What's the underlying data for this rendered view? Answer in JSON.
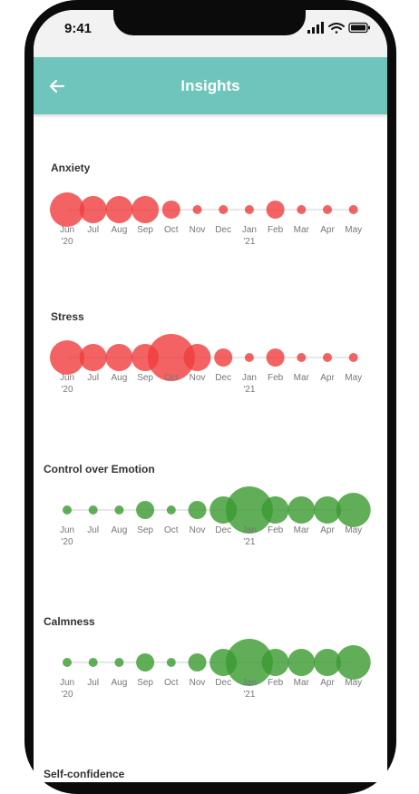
{
  "status_bar": {
    "time": "9:41"
  },
  "header": {
    "title": "Insights"
  },
  "months": [
    {
      "m": "Jun",
      "y": "'20"
    },
    {
      "m": "Jul",
      "y": ""
    },
    {
      "m": "Aug",
      "y": ""
    },
    {
      "m": "Sep",
      "y": ""
    },
    {
      "m": "Oct",
      "y": ""
    },
    {
      "m": "Nov",
      "y": ""
    },
    {
      "m": "Dec",
      "y": ""
    },
    {
      "m": "Jan",
      "y": "'21"
    },
    {
      "m": "Feb",
      "y": ""
    },
    {
      "m": "Mar",
      "y": ""
    },
    {
      "m": "Apr",
      "y": ""
    },
    {
      "m": "May",
      "y": ""
    }
  ],
  "sections": [
    {
      "title": "Anxiety",
      "color": "#f03c3c",
      "values": [
        9,
        7,
        7,
        7,
        4,
        2,
        2,
        2,
        4,
        2,
        2,
        2
      ]
    },
    {
      "title": "Stress",
      "color": "#f03c3c",
      "values": [
        9,
        7,
        7,
        7,
        11,
        7,
        4,
        2,
        4,
        2,
        2,
        2
      ]
    },
    {
      "title": "Control over Emotion",
      "color": "#3a9a30",
      "values": [
        2,
        2,
        2,
        4,
        2,
        4,
        7,
        11,
        7,
        7,
        7,
        9
      ]
    },
    {
      "title": "Calmness",
      "color": "#3a9a30",
      "values": [
        2,
        2,
        2,
        4,
        2,
        4,
        7,
        11,
        7,
        7,
        7,
        9
      ]
    },
    {
      "title": "Self-confidence",
      "color": "#3a9a30",
      "values": []
    }
  ]
}
